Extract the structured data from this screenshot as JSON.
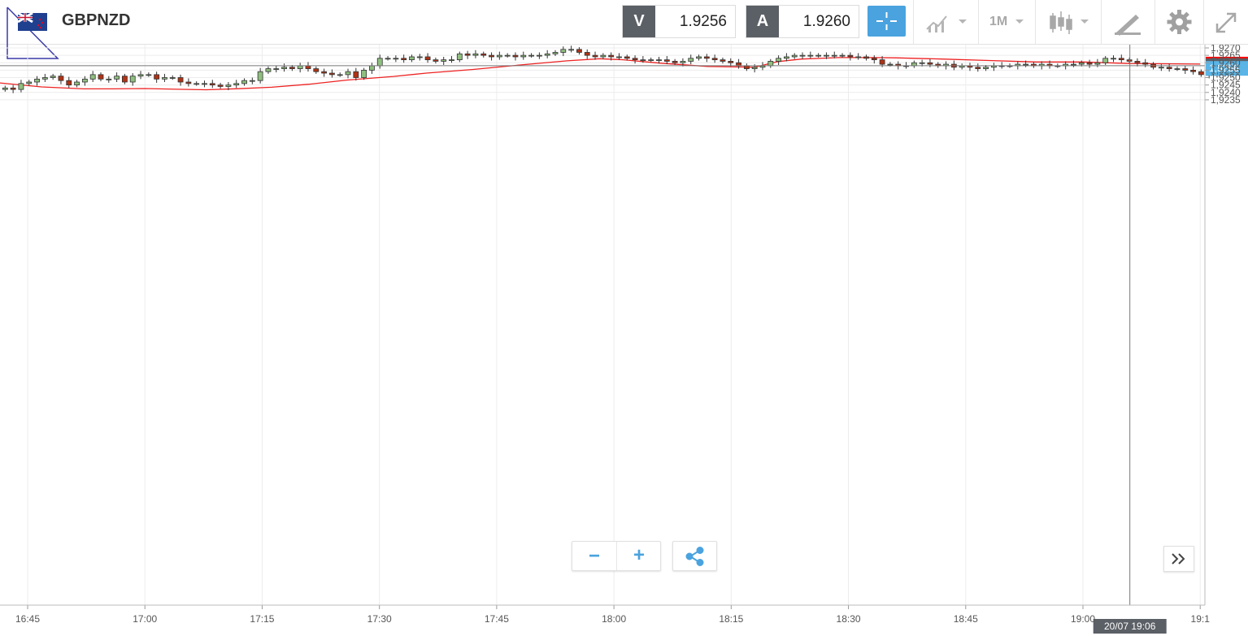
{
  "header": {
    "symbol": "GBPNZD",
    "bid_tag": "V",
    "bid_value": "1.9256",
    "ask_tag": "A",
    "ask_value": "1.9260",
    "timeframe": "1M"
  },
  "colors": {
    "bull": "#8fbf7f",
    "bear": "#b03214",
    "ma_line": "#ee2222",
    "accent": "#4aa3df",
    "axis_text": "#555555"
  },
  "icons": [
    "flag-icon",
    "crosshair-icon",
    "chart-type-icon",
    "candles-icon",
    "drawing-tools-icon",
    "gear-icon",
    "fullscreen-icon",
    "zoom-out-icon",
    "zoom-in-icon",
    "share-icon",
    "expand-right-icon"
  ],
  "chart_data": {
    "type": "candlestick",
    "ylim": [
      1.9232,
      1.927
    ],
    "y_ticks": [
      "1,9235",
      "1,9240",
      "1,9245",
      "1,9250",
      "1,9255",
      "1,9260",
      "1,9265",
      "1,9270"
    ],
    "x_ticks": [
      "16:45",
      "17:00",
      "17:15",
      "17:30",
      "17:45",
      "18:00",
      "18:15",
      "18:30",
      "18:45",
      "19:00",
      "19:1"
    ],
    "price_labels": {
      "ma": "1,9259",
      "crosshair": "1,9258",
      "bid": "1,9256"
    },
    "crosshair_time": "20/07 19:06",
    "crosshair_price": 1.9258,
    "closes": [
      1.9235,
      1.9237,
      1.9238,
      1.9241,
      1.9241,
      1.9242,
      1.9243,
      1.9242,
      1.9246,
      1.9247,
      1.9249,
      1.925,
      1.9251,
      1.9248,
      1.9245,
      1.9247,
      1.9249,
      1.9252,
      1.9249,
      1.9249,
      1.9251,
      1.9247,
      1.9251,
      1.9252,
      1.9252,
      1.9249,
      1.925,
      1.925,
      1.9247,
      1.9246,
      1.9246,
      1.9246,
      1.9245,
      1.9244,
      1.9245,
      1.9246,
      1.9248,
      1.9248,
      1.9254,
      1.9256,
      1.9256,
      1.9257,
      1.9256,
      1.9258,
      1.9256,
      1.9254,
      1.9253,
      1.9252,
      1.9252,
      1.9254,
      1.925,
      1.9255,
      1.9258,
      1.9263,
      1.9263,
      1.9263,
      1.9262,
      1.9264,
      1.9264,
      1.9262,
      1.9261,
      1.9262,
      1.9262,
      1.9266,
      1.9265,
      1.9266,
      1.9265,
      1.9264,
      1.9265,
      1.9265,
      1.9264,
      1.9265,
      1.9265,
      1.9265,
      1.9266,
      1.9267,
      1.9269,
      1.9269,
      1.9267,
      1.9265,
      1.9264,
      1.9265,
      1.9264,
      1.9264,
      1.9263,
      1.9262,
      1.9262,
      1.9262,
      1.9262,
      1.9261,
      1.926,
      1.9261,
      1.9263,
      1.9264,
      1.9263,
      1.9262,
      1.9261,
      1.926,
      1.9258,
      1.9256,
      1.9257,
      1.9258,
      1.9261,
      1.9263,
      1.9264,
      1.9265,
      1.9265,
      1.9265,
      1.9265,
      1.9265,
      1.9265,
      1.9265,
      1.9264,
      1.9264,
      1.9263,
      1.9262,
      1.9259,
      1.9259,
      1.9258,
      1.9258,
      1.926,
      1.926,
      1.9259,
      1.9258,
      1.9259,
      1.9257,
      1.9258,
      1.9257,
      1.9256,
      1.9257,
      1.9258,
      1.9258,
      1.9258,
      1.9259,
      1.9259,
      1.9258,
      1.9259,
      1.9258,
      1.9258,
      1.9259,
      1.9259,
      1.926,
      1.9259,
      1.926,
      1.9263,
      1.9263,
      1.9262,
      1.9261,
      1.926,
      1.9259,
      1.9257,
      1.9257,
      1.9256,
      1.9256,
      1.9255,
      1.9254,
      1.9252,
      1.9252,
      1.9252,
      1.9253,
      1.9255
    ],
    "ma_points": [
      [
        16.68,
        1.92467
      ],
      [
        16.78,
        1.92437
      ],
      [
        16.87,
        1.92424
      ],
      [
        16.93,
        1.92424
      ],
      [
        17.0,
        1.92426
      ],
      [
        17.07,
        1.92421
      ],
      [
        17.13,
        1.92418
      ],
      [
        17.2,
        1.92425
      ],
      [
        17.27,
        1.92435
      ],
      [
        17.35,
        1.92455
      ],
      [
        17.43,
        1.92483
      ],
      [
        17.53,
        1.92508
      ],
      [
        17.6,
        1.9253
      ],
      [
        17.7,
        1.92555
      ],
      [
        17.8,
        1.92585
      ],
      [
        17.9,
        1.92613
      ],
      [
        17.97,
        1.92627
      ],
      [
        18.02,
        1.9262
      ],
      [
        18.1,
        1.92597
      ],
      [
        18.2,
        1.92575
      ],
      [
        18.3,
        1.9257
      ],
      [
        18.35,
        1.92608
      ],
      [
        18.4,
        1.92625
      ],
      [
        18.48,
        1.92635
      ],
      [
        18.55,
        1.92635
      ],
      [
        18.6,
        1.92633
      ],
      [
        18.7,
        1.92625
      ],
      [
        18.8,
        1.92615
      ],
      [
        18.9,
        1.92605
      ],
      [
        19.0,
        1.92605
      ],
      [
        19.1,
        1.92595
      ],
      [
        19.25,
        1.92591
      ]
    ]
  },
  "controls": {
    "zoom_out": "−",
    "zoom_in": "+"
  }
}
